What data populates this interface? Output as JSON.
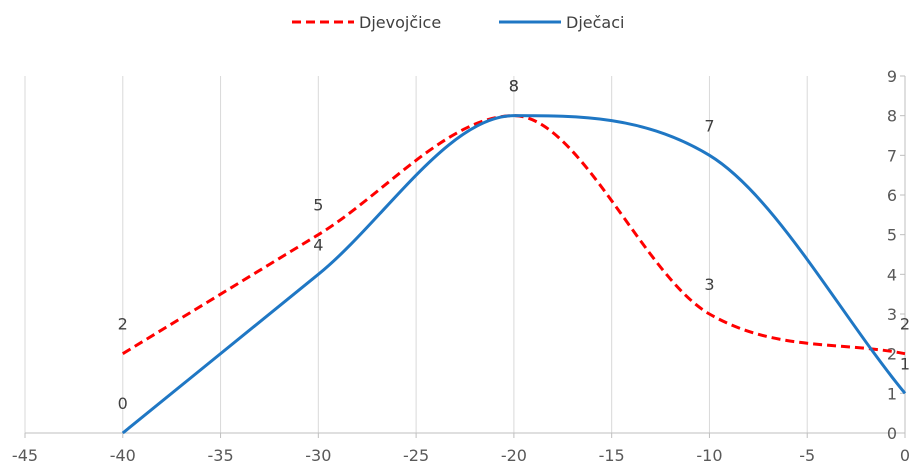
{
  "chart_data": {
    "type": "line",
    "title": "",
    "xlabel": "",
    "ylabel": "",
    "xlim": [
      -45,
      0
    ],
    "ylim": [
      0,
      9
    ],
    "x_ticks": [
      -45,
      -40,
      -35,
      -30,
      -25,
      -20,
      -15,
      -10,
      -5,
      0
    ],
    "y_ticks": [
      0,
      1,
      2,
      3,
      4,
      5,
      6,
      7,
      8,
      9
    ],
    "grid": "vertical",
    "y_axis_position": "right",
    "legend": "top-center",
    "series": [
      {
        "name": "Djevojčice",
        "color": "#ff0000",
        "dash": "dashed",
        "x": [
          -40,
          -30,
          -20,
          -10,
          0
        ],
        "y": [
          2,
          5,
          8,
          3,
          2
        ]
      },
      {
        "name": "Dječaci",
        "color": "#1f77c4",
        "dash": "solid",
        "x": [
          -40,
          -30,
          -20,
          -10,
          0
        ],
        "y": [
          0,
          4,
          8,
          7,
          1
        ]
      }
    ]
  }
}
